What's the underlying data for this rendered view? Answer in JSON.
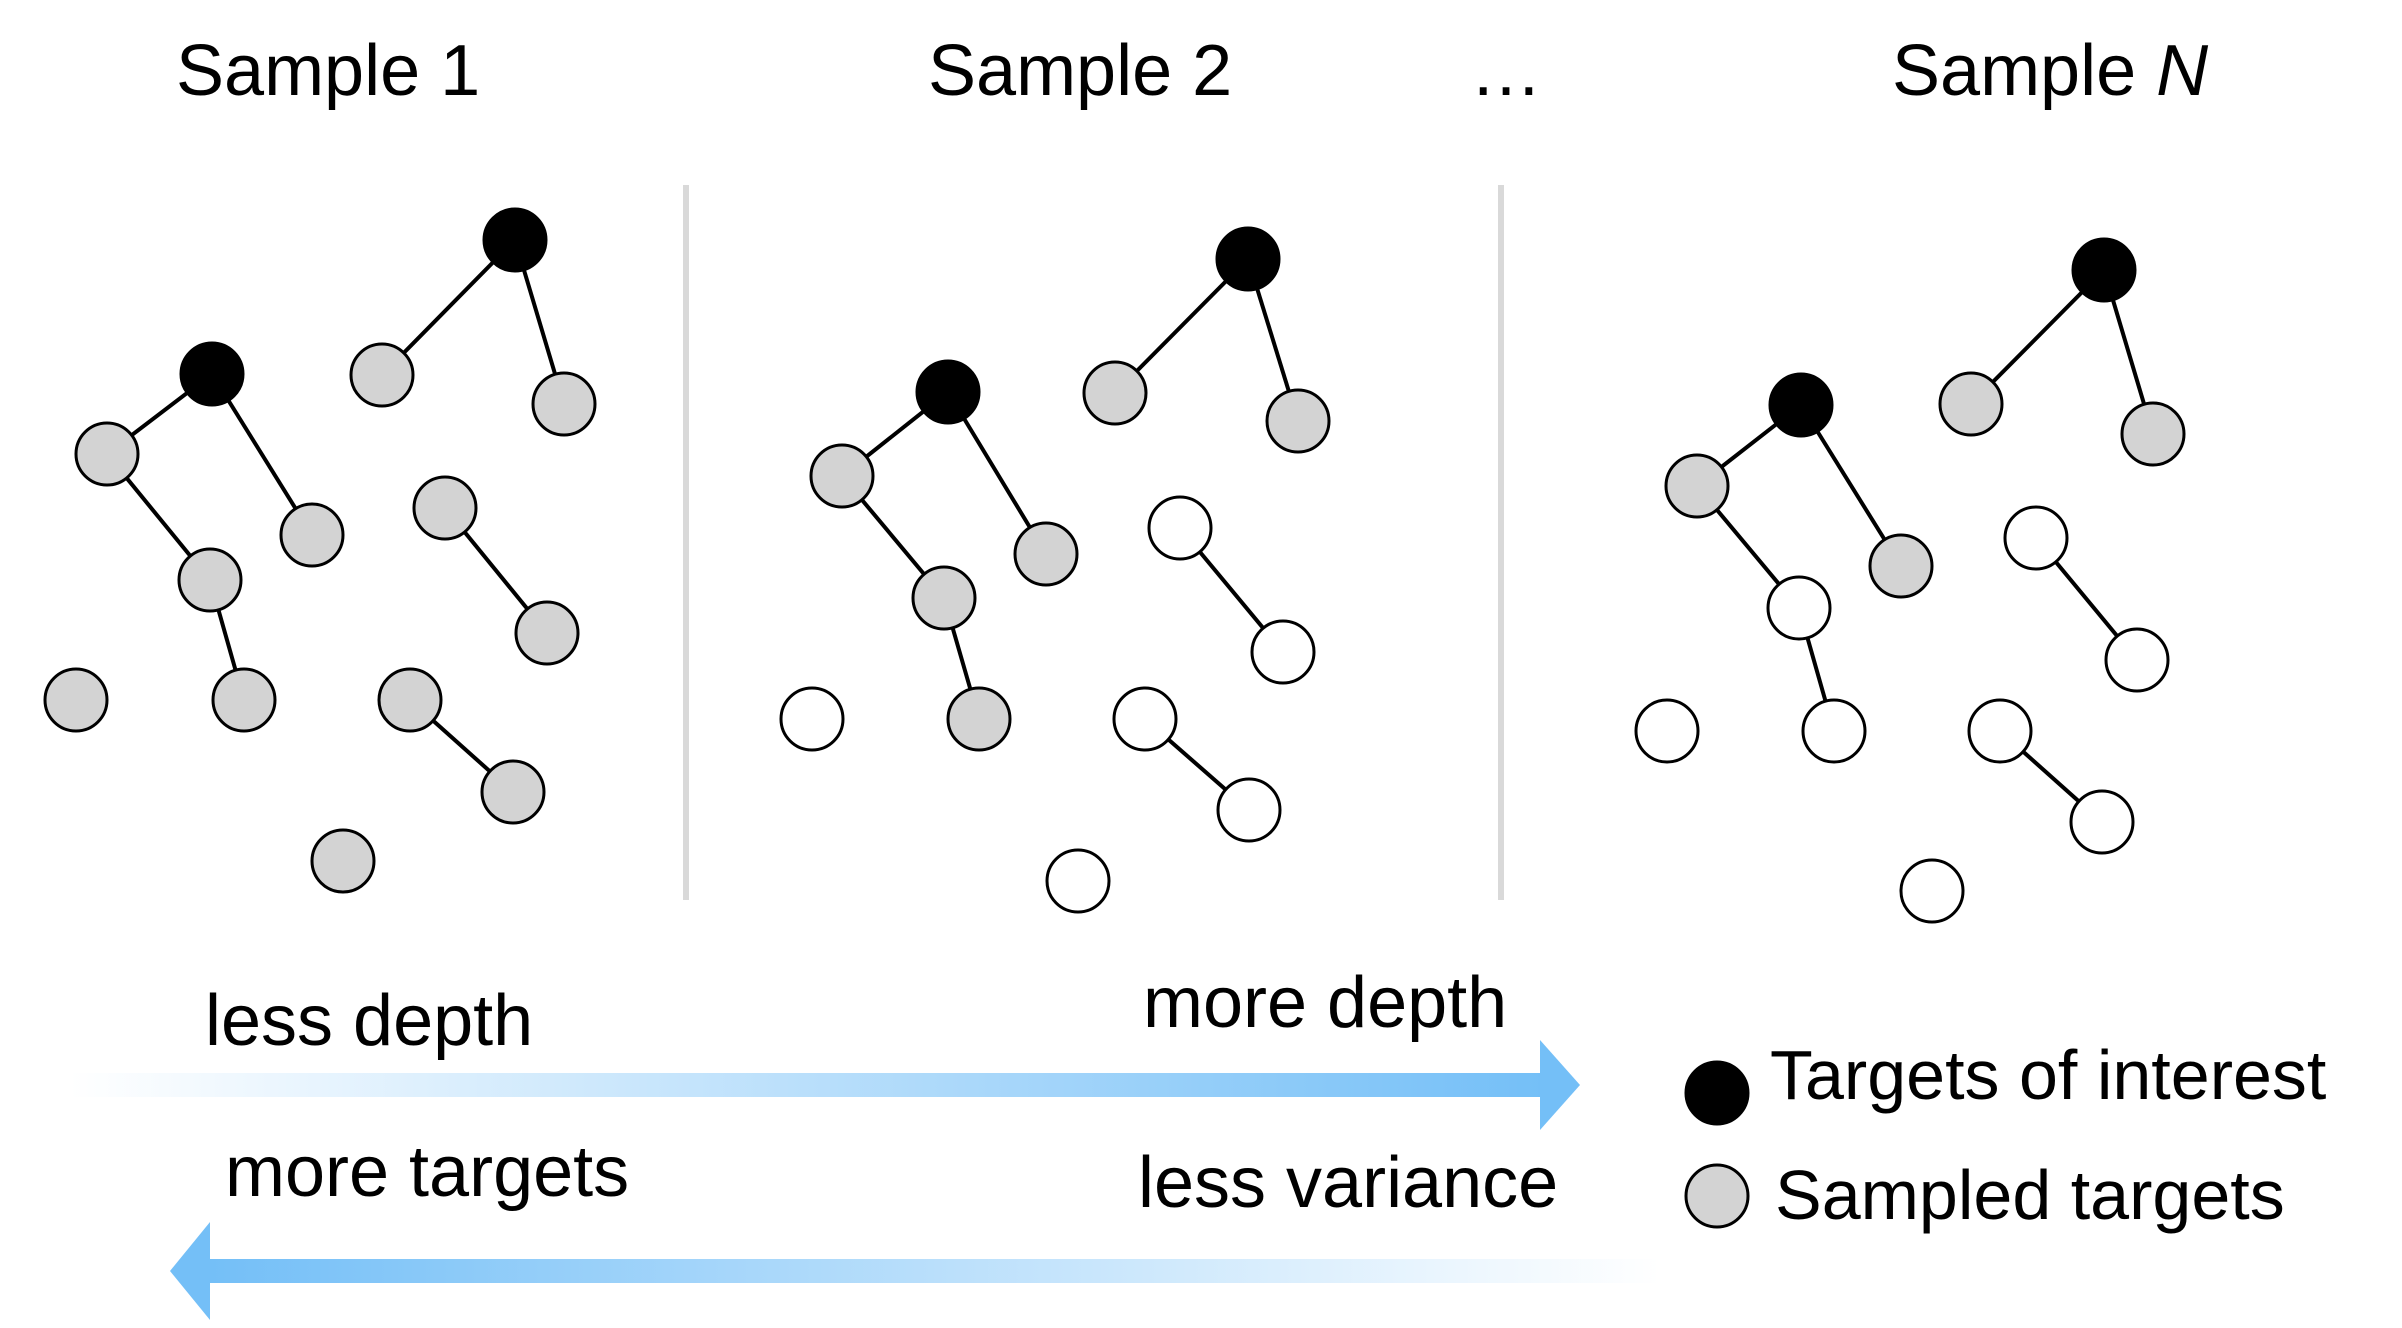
{
  "samples": [
    {
      "title": "Sample 1",
      "title_emph": ""
    },
    {
      "title": "Sample 2",
      "title_emph": ""
    },
    {
      "title": "Sample ",
      "title_emph": "N"
    }
  ],
  "ellipsis": "…",
  "node_colors": {
    "target": "#000000",
    "sampled": "#d3d3d3",
    "unsampled": "#ffffff",
    "edge": "#000000",
    "divider": "#d9d9d9",
    "arrow": "#74bff7"
  },
  "panels": [
    {
      "name": "sample-1",
      "nodes": [
        {
          "id": "a",
          "type": "target"
        },
        {
          "id": "b",
          "type": "sampled"
        },
        {
          "id": "c",
          "type": "sampled"
        },
        {
          "id": "d",
          "type": "target"
        },
        {
          "id": "e",
          "type": "sampled"
        },
        {
          "id": "f",
          "type": "sampled"
        },
        {
          "id": "g",
          "type": "sampled"
        },
        {
          "id": "h",
          "type": "sampled"
        },
        {
          "id": "i",
          "type": "sampled"
        },
        {
          "id": "j",
          "type": "sampled"
        },
        {
          "id": "k",
          "type": "sampled"
        },
        {
          "id": "l",
          "type": "sampled"
        },
        {
          "id": "m",
          "type": "sampled"
        },
        {
          "id": "n",
          "type": "sampled"
        }
      ]
    },
    {
      "name": "sample-2",
      "nodes": [
        {
          "id": "a",
          "type": "target"
        },
        {
          "id": "b",
          "type": "sampled"
        },
        {
          "id": "c",
          "type": "sampled"
        },
        {
          "id": "d",
          "type": "target"
        },
        {
          "id": "e",
          "type": "sampled"
        },
        {
          "id": "f",
          "type": "sampled"
        },
        {
          "id": "g",
          "type": "sampled"
        },
        {
          "id": "h",
          "type": "unsampled"
        },
        {
          "id": "i",
          "type": "unsampled"
        },
        {
          "id": "j",
          "type": "unsampled"
        },
        {
          "id": "k",
          "type": "sampled"
        },
        {
          "id": "l",
          "type": "unsampled"
        },
        {
          "id": "m",
          "type": "unsampled"
        },
        {
          "id": "n",
          "type": "unsampled"
        }
      ]
    },
    {
      "name": "sample-n",
      "nodes": [
        {
          "id": "a",
          "type": "target"
        },
        {
          "id": "b",
          "type": "sampled"
        },
        {
          "id": "c",
          "type": "sampled"
        },
        {
          "id": "d",
          "type": "target"
        },
        {
          "id": "e",
          "type": "sampled"
        },
        {
          "id": "f",
          "type": "sampled"
        },
        {
          "id": "g",
          "type": "unsampled"
        },
        {
          "id": "h",
          "type": "unsampled"
        },
        {
          "id": "i",
          "type": "unsampled"
        },
        {
          "id": "j",
          "type": "unsampled"
        },
        {
          "id": "k",
          "type": "unsampled"
        },
        {
          "id": "l",
          "type": "unsampled"
        },
        {
          "id": "m",
          "type": "unsampled"
        },
        {
          "id": "n",
          "type": "unsampled"
        }
      ]
    }
  ],
  "edges": [
    [
      "a",
      "b"
    ],
    [
      "a",
      "c"
    ],
    [
      "d",
      "e"
    ],
    [
      "d",
      "f"
    ],
    [
      "e",
      "g"
    ],
    [
      "g",
      "k"
    ],
    [
      "h",
      "i"
    ],
    [
      "l",
      "m"
    ]
  ],
  "axis": {
    "top_left": "less depth",
    "top_right": "more depth",
    "bottom_left": "more targets",
    "bottom_right": "less variance"
  },
  "legend": {
    "target_label": "Targets of interest",
    "sampled_label": "Sampled targets"
  }
}
